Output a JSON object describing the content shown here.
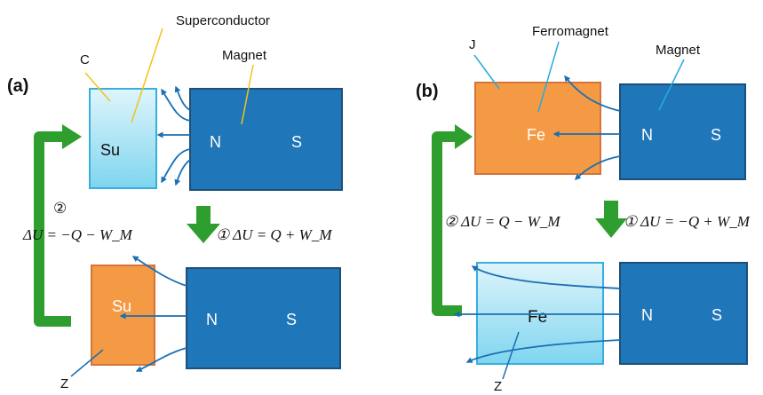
{
  "colors": {
    "magnet": "#1f76b8",
    "magnet_edge": "#1d4f78",
    "superconductor_top": "#dff5fb",
    "superconductor_bottom": "#7fd5ef",
    "superconductor_edge": "#38aede",
    "orange": "#f59a44",
    "orange_edge": "#d4743a",
    "arrow_blue": "#1a6fb3",
    "green_arrow": "#2e9e2e",
    "pointer_yellow": "#f2c318",
    "pointer_cyan": "#29a9e0"
  },
  "panel_a": {
    "label": "(a)",
    "label_superconductor": "Superconductor",
    "label_magnet": "Magnet",
    "label_c": "C",
    "label_z": "Z",
    "top_block_text": "Su",
    "bottom_block_text": "Su",
    "pole_n_top": "N",
    "pole_s_top": "S",
    "pole_n_bottom": "N",
    "pole_s_bottom": "S",
    "step2_num": "②",
    "step2_eq": "ΔU = −Q − W_M",
    "step1_eq": "① ΔU = Q + W_M"
  },
  "panel_b": {
    "label": "(b)",
    "label_ferromagnet": "Ferromagnet",
    "label_magnet": "Magnet",
    "label_j": "J",
    "label_z": "Z",
    "top_block_text": "Fe",
    "bottom_block_text": "Fe",
    "pole_n_top": "N",
    "pole_s_top": "S",
    "pole_n_bottom": "N",
    "pole_s_bottom": "S",
    "step2_eq": "② ΔU = Q − W_M",
    "step1_eq": "① ΔU = −Q + W_M"
  }
}
